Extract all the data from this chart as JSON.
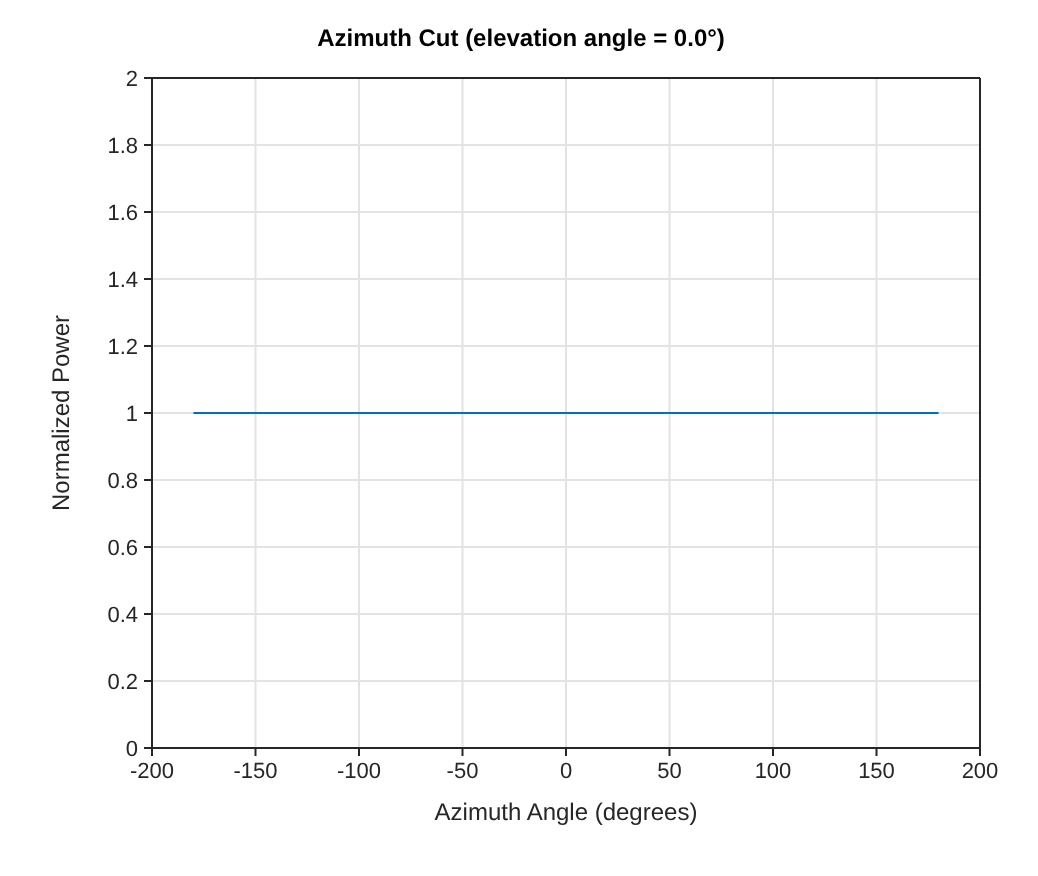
{
  "chart_data": {
    "type": "line",
    "title": "Azimuth Cut (elevation angle = 0.0°)",
    "xlabel": "Azimuth Angle (degrees)",
    "ylabel": "Normalized Power",
    "x": [
      -180,
      180
    ],
    "series": [
      {
        "color": "#0072bd",
        "values": [
          1,
          1
        ]
      }
    ],
    "xlim": [
      -200,
      200
    ],
    "xticks": [
      -200,
      -150,
      -100,
      -50,
      0,
      50,
      100,
      150,
      200
    ],
    "ylim": [
      0,
      2
    ],
    "yticks": [
      0,
      0.2,
      0.4,
      0.6,
      0.8,
      1,
      1.2,
      1.4,
      1.6,
      1.8,
      2
    ],
    "grid": true,
    "marker": "none",
    "line_style": "solid"
  }
}
